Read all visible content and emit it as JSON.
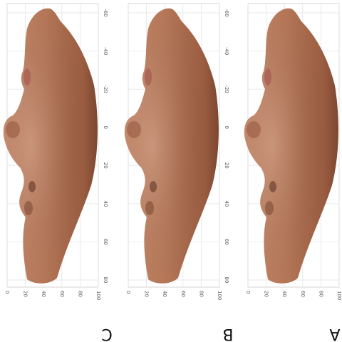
{
  "panels": [
    {
      "label": "C",
      "right_ticks": [
        "-60",
        "-40",
        "-20",
        "0",
        "20",
        "40",
        "60",
        "80"
      ],
      "bottom_ticks": [
        "0",
        "20",
        "40",
        "60",
        "80",
        "100"
      ]
    },
    {
      "label": "B",
      "right_ticks": [
        "-60",
        "-40",
        "-20",
        "0",
        "20",
        "40",
        "60",
        "80"
      ],
      "bottom_ticks": [
        "0",
        "20",
        "40",
        "60",
        "80",
        "100"
      ]
    },
    {
      "label": "A",
      "right_ticks": [
        "-60",
        "-40",
        "-20",
        "0",
        "20",
        "40",
        "60",
        "80"
      ],
      "bottom_ticks": [
        "0",
        "20",
        "40",
        "60",
        "80",
        "100"
      ]
    }
  ]
}
